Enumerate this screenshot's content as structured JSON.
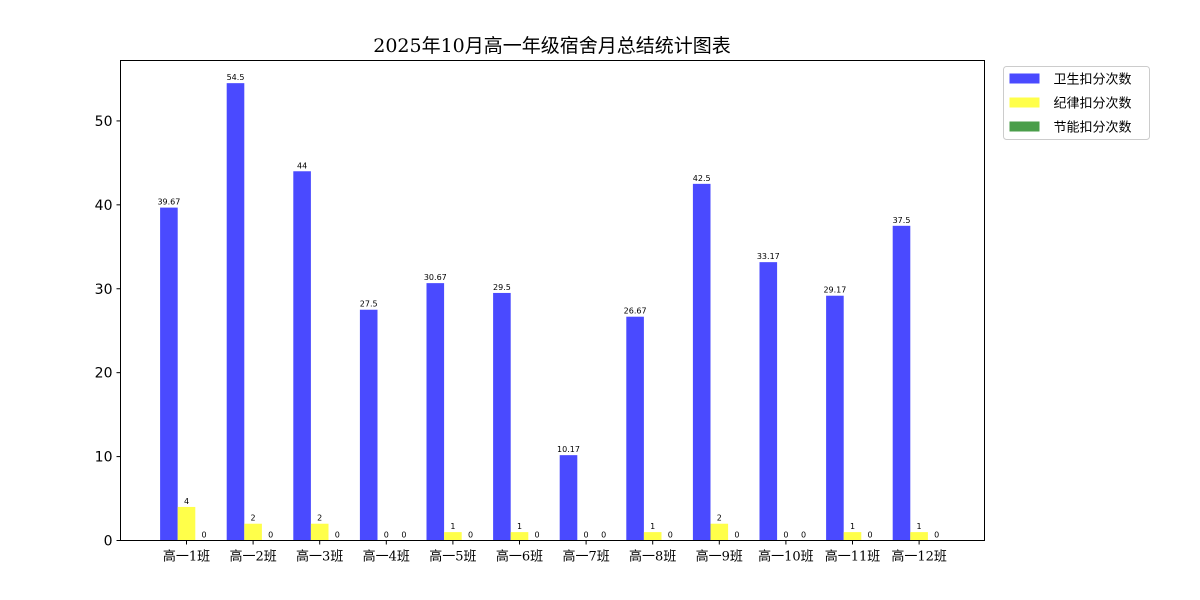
{
  "chart_data": {
    "type": "bar",
    "title": "2025年10月高一年级宿舍月总结统计图表",
    "xlabel": "",
    "ylabel": "",
    "ylim": [
      0,
      57.2
    ],
    "yticks": [
      0,
      10,
      20,
      30,
      40,
      50
    ],
    "categories": [
      "高一1班",
      "高一2班",
      "高一3班",
      "高一4班",
      "高一5班",
      "高一6班",
      "高一7班",
      "高一8班",
      "高一9班",
      "高一10班",
      "高一11班",
      "高一12班"
    ],
    "series": [
      {
        "name": "卫生扣分次数",
        "color": "#4a4aff",
        "values": [
          39.67,
          54.5,
          44,
          27.5,
          30.67,
          29.5,
          10.17,
          26.67,
          42.5,
          33.17,
          29.17,
          37.5
        ]
      },
      {
        "name": "纪律扣分次数",
        "color": "#ffff4a",
        "values": [
          4,
          2,
          2,
          0,
          1,
          1,
          0,
          1,
          2,
          0,
          1,
          1
        ]
      },
      {
        "name": "节能扣分次数",
        "color": "#4a9e4a",
        "values": [
          0,
          0,
          0,
          0,
          0,
          0,
          0,
          0,
          0,
          0,
          0,
          0
        ]
      }
    ],
    "grid": false,
    "legend_position": "outside-top-right"
  }
}
